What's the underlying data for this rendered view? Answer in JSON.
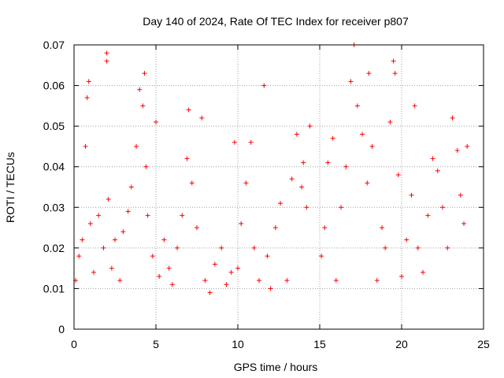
{
  "chart_data": {
    "type": "scatter",
    "title": "Day 140 of 2024, Rate Of TEC Index for receiver p807",
    "xlabel": "GPS time / hours",
    "ylabel": "ROTI / TECUs",
    "xlim": [
      0,
      25
    ],
    "ylim": [
      0,
      0.07
    ],
    "xticks": [
      0,
      5,
      10,
      15,
      20,
      25
    ],
    "yticks": [
      0,
      0.01,
      0.02,
      0.03,
      0.04,
      0.05,
      0.06,
      0.07
    ],
    "xtick_labels": [
      "0",
      "5",
      "10",
      "15",
      "20",
      "25"
    ],
    "ytick_labels": [
      "0",
      "0.01",
      "0.02",
      "0.03",
      "0.04",
      "0.05",
      "0.06",
      "0.07"
    ],
    "grid": true,
    "marker": "+",
    "color": "#ff0000",
    "data_gap_hours": [
      14.5,
      15.0
    ],
    "series": [
      {
        "name": "ROTI p807",
        "x": [
          0.1,
          0.3,
          0.5,
          0.7,
          0.8,
          0.9,
          1.0,
          1.2,
          1.5,
          1.8,
          2.0,
          2.0,
          2.1,
          2.3,
          2.5,
          2.8,
          3.0,
          3.3,
          3.5,
          3.8,
          4.0,
          4.2,
          4.3,
          4.4,
          4.5,
          4.8,
          5.0,
          5.2,
          5.5,
          5.8,
          6.0,
          6.3,
          6.6,
          6.9,
          7.0,
          7.2,
          7.5,
          7.8,
          8.0,
          8.3,
          8.6,
          9.0,
          9.3,
          9.6,
          9.8,
          10.0,
          10.2,
          10.5,
          10.8,
          11.0,
          11.3,
          11.6,
          11.8,
          12.0,
          12.3,
          12.6,
          13.0,
          13.3,
          13.6,
          13.9,
          14.0,
          14.2,
          14.4,
          15.1,
          15.3,
          15.5,
          15.8,
          16.0,
          16.3,
          16.6,
          16.9,
          17.1,
          17.3,
          17.6,
          17.9,
          18.0,
          18.2,
          18.5,
          18.8,
          19.0,
          19.3,
          19.5,
          19.6,
          19.8,
          20.0,
          20.3,
          20.6,
          20.8,
          21.0,
          21.3,
          21.6,
          21.9,
          22.2,
          22.5,
          22.8,
          23.1,
          23.4,
          23.6,
          23.8,
          24.0
        ],
        "y": [
          0.012,
          0.018,
          0.022,
          0.045,
          0.057,
          0.061,
          0.026,
          0.014,
          0.028,
          0.02,
          0.068,
          0.066,
          0.032,
          0.015,
          0.022,
          0.012,
          0.024,
          0.029,
          0.035,
          0.045,
          0.059,
          0.055,
          0.063,
          0.04,
          0.028,
          0.018,
          0.051,
          0.013,
          0.022,
          0.015,
          0.011,
          0.02,
          0.028,
          0.042,
          0.054,
          0.036,
          0.025,
          0.052,
          0.012,
          0.009,
          0.016,
          0.02,
          0.011,
          0.014,
          0.046,
          0.015,
          0.026,
          0.036,
          0.046,
          0.02,
          0.012,
          0.06,
          0.018,
          0.01,
          0.025,
          0.031,
          0.012,
          0.037,
          0.048,
          0.035,
          0.041,
          0.03,
          0.05,
          0.018,
          0.025,
          0.041,
          0.047,
          0.012,
          0.03,
          0.04,
          0.061,
          0.07,
          0.055,
          0.048,
          0.036,
          0.063,
          0.045,
          0.012,
          0.025,
          0.02,
          0.051,
          0.066,
          0.063,
          0.038,
          0.013,
          0.022,
          0.033,
          0.055,
          0.02,
          0.014,
          0.028,
          0.042,
          0.039,
          0.03,
          0.02,
          0.052,
          0.044,
          0.033,
          0.026,
          0.045
        ]
      }
    ]
  }
}
